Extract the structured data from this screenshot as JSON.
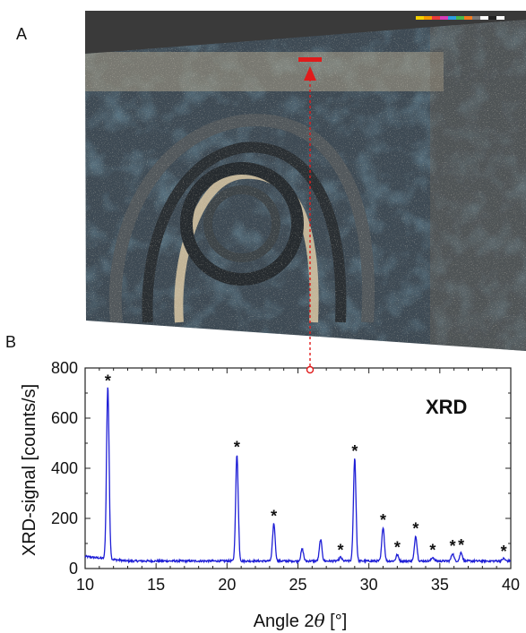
{
  "figure": {
    "panel_a_label": "A",
    "panel_b_label": "B"
  },
  "photo": {
    "description_colors": {
      "background": "#3b4450",
      "dark_patches": "#1f2a33",
      "light_flakes": "#cfc3a4",
      "rim": "#8c8070",
      "top_band": "#3a3a3a",
      "marker": "#e01b1b"
    },
    "color_scale_swatches": [
      "#f4d000",
      "#f49a00",
      "#e83a3a",
      "#d63cb8",
      "#2d9be0",
      "#47b74a",
      "#f07a20",
      "#777777",
      "#ffffff",
      "#222222",
      "#ffffff"
    ]
  },
  "chart_data": {
    "type": "line",
    "xlabel": "Angle  2θ [°]",
    "ylabel": "XRD-signal  [counts/s]",
    "xlim": [
      10,
      40
    ],
    "ylim": [
      0,
      800
    ],
    "xticks": [
      "10",
      "15",
      "20",
      "25",
      "30",
      "35",
      "40"
    ],
    "yticks": [
      "0",
      "200",
      "400",
      "600",
      "800"
    ],
    "annotation": "XRD",
    "line_color": "#1f1fd6",
    "baseline": 30,
    "peaks": [
      {
        "x": 11.6,
        "y": 720,
        "marked": true
      },
      {
        "x": 20.7,
        "y": 455,
        "marked": true
      },
      {
        "x": 23.3,
        "y": 180,
        "marked": true
      },
      {
        "x": 25.3,
        "y": 78,
        "marked": false
      },
      {
        "x": 26.6,
        "y": 115,
        "marked": false
      },
      {
        "x": 28.0,
        "y": 45,
        "marked": true
      },
      {
        "x": 29.0,
        "y": 440,
        "marked": true
      },
      {
        "x": 31.0,
        "y": 165,
        "marked": true
      },
      {
        "x": 32.0,
        "y": 55,
        "marked": true
      },
      {
        "x": 33.3,
        "y": 130,
        "marked": true
      },
      {
        "x": 34.5,
        "y": 45,
        "marked": true
      },
      {
        "x": 35.9,
        "y": 60,
        "marked": true
      },
      {
        "x": 36.5,
        "y": 65,
        "marked": true
      },
      {
        "x": 39.5,
        "y": 40,
        "marked": true
      }
    ],
    "marker_symbol": "*",
    "grid": false
  },
  "link": {
    "color": "#e01b1b"
  }
}
